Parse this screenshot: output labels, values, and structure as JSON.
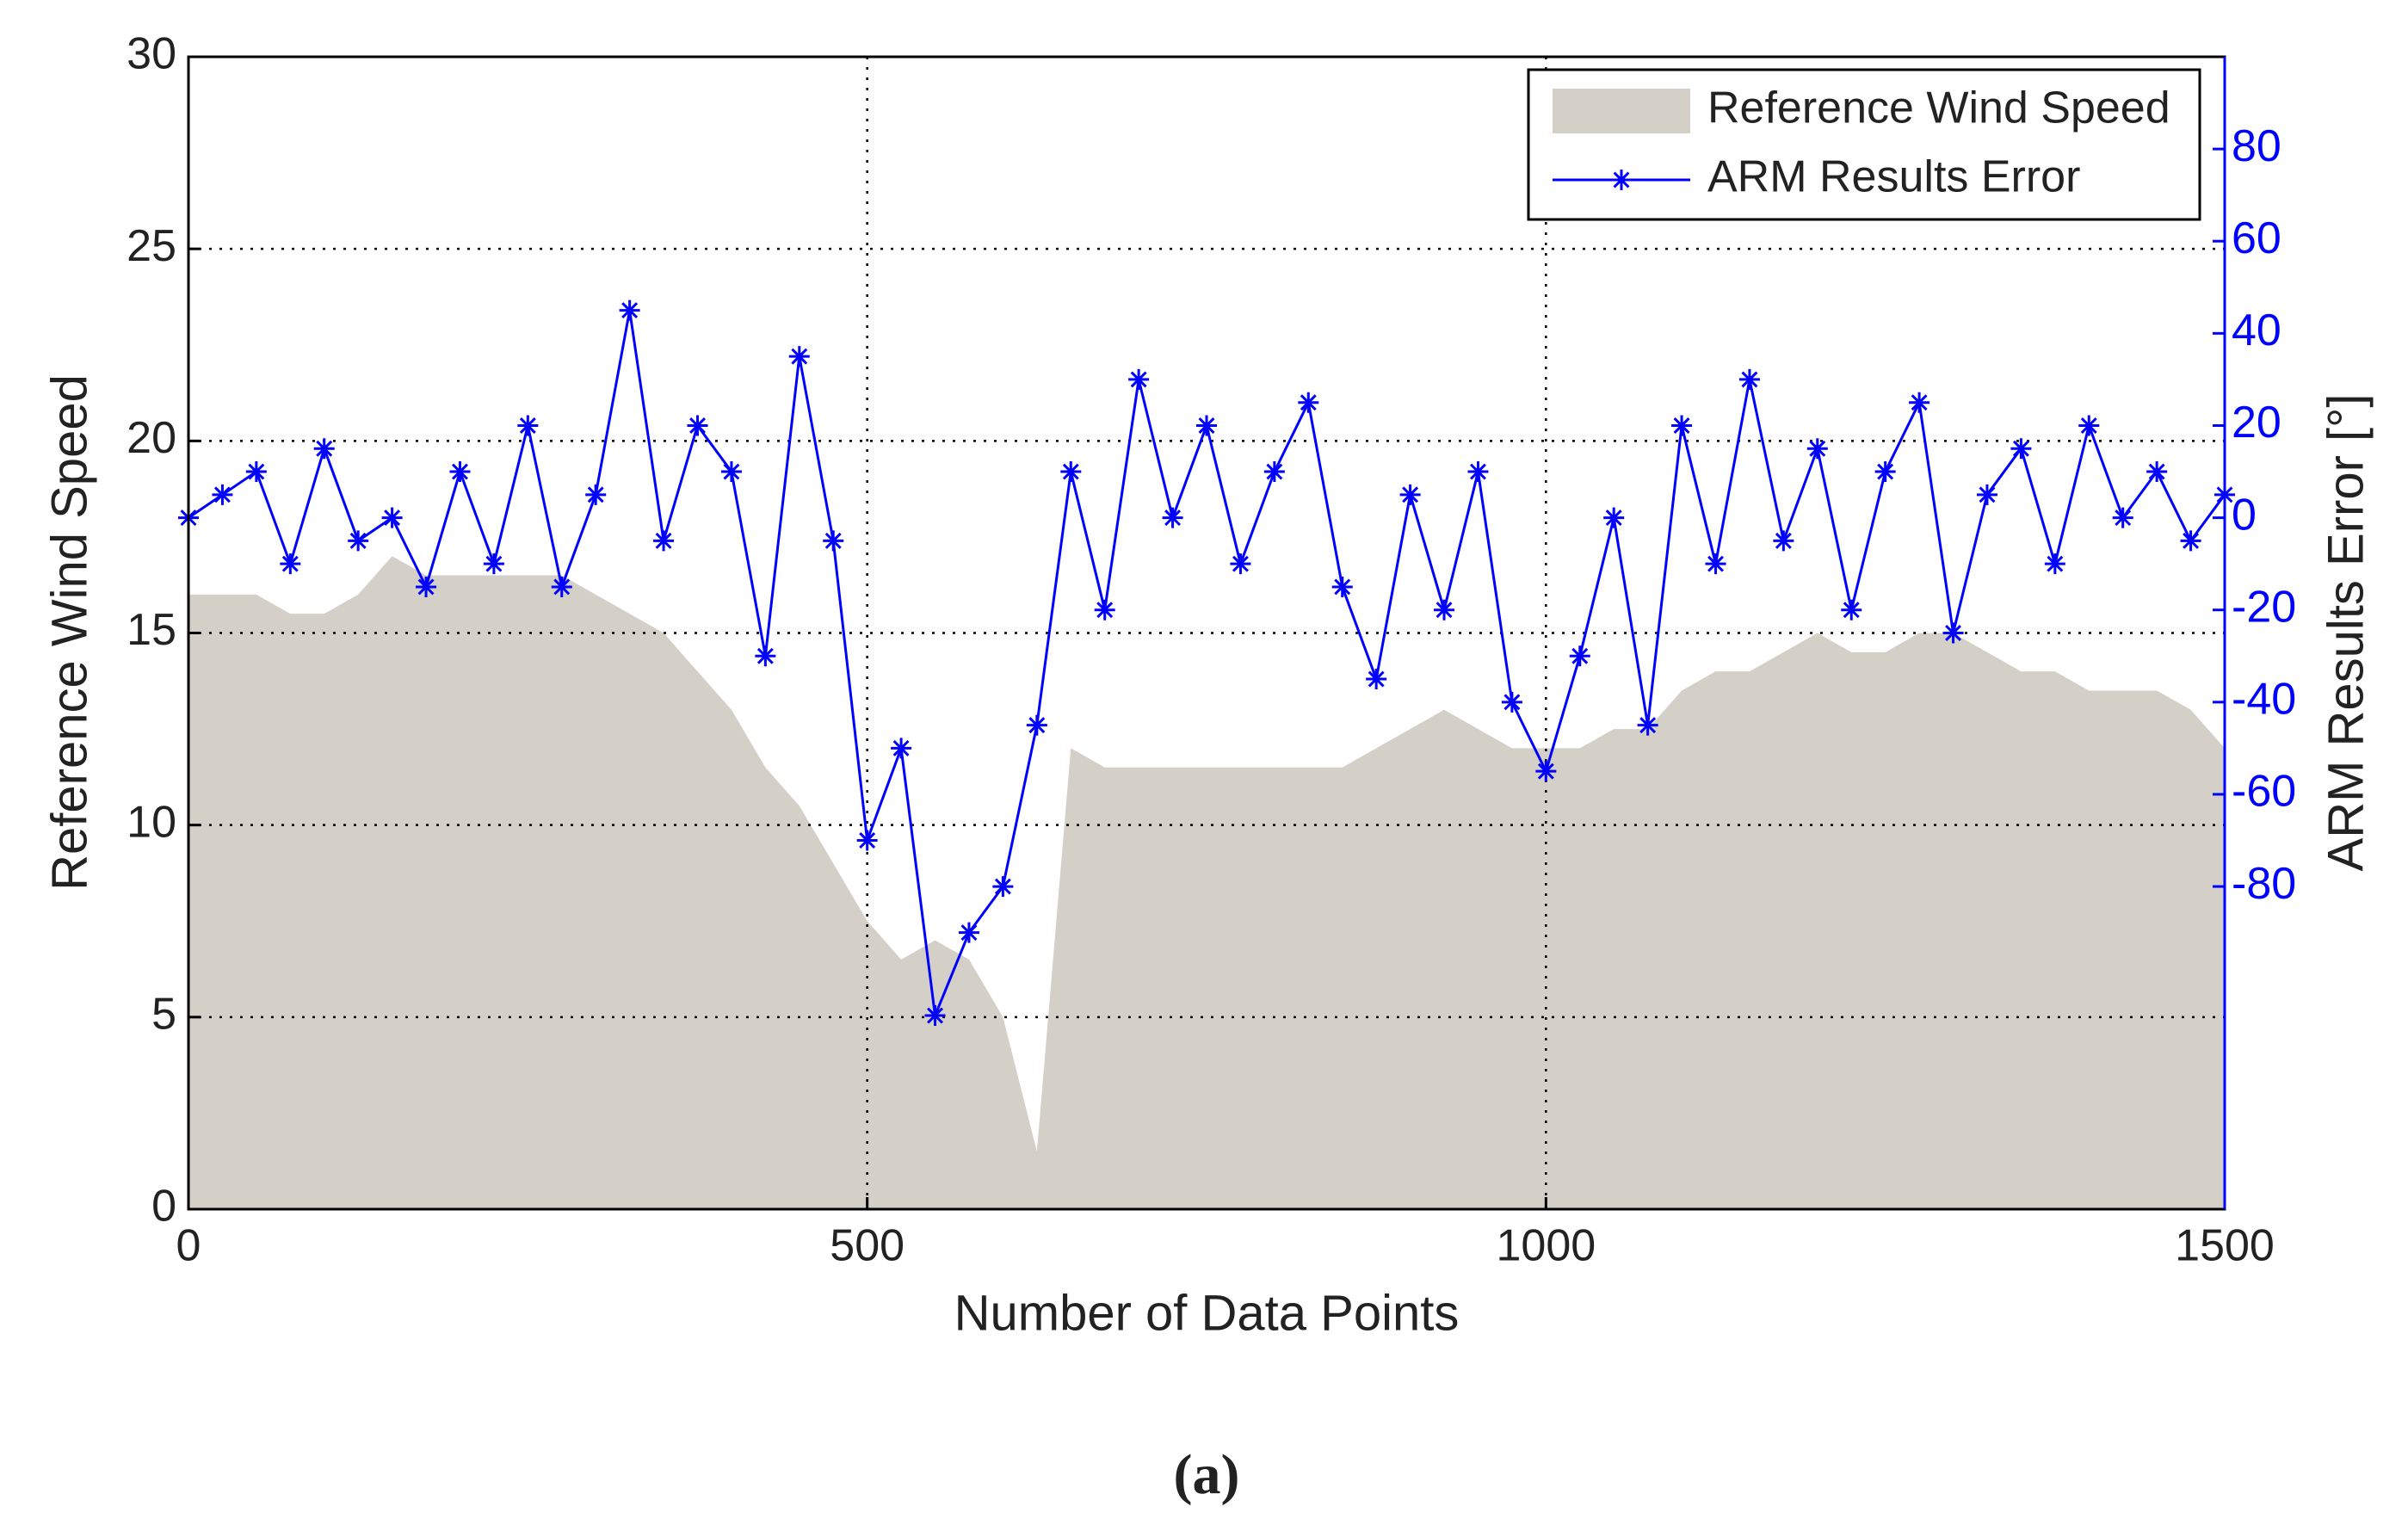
{
  "chart_data": {
    "type": "area",
    "xlabel": "Number of Data Points",
    "ylabel": "Reference Wind Speed",
    "y2label": "ARM Results Error [°]",
    "caption": "(a)",
    "x": [
      0,
      25,
      50,
      75,
      100,
      125,
      150,
      175,
      200,
      225,
      250,
      275,
      300,
      325,
      350,
      375,
      400,
      425,
      450,
      475,
      500,
      525,
      550,
      575,
      600,
      625,
      650,
      675,
      700,
      725,
      750,
      775,
      800,
      825,
      850,
      875,
      900,
      925,
      950,
      975,
      1000,
      1025,
      1050,
      1075,
      1100,
      1125,
      1150,
      1175,
      1200,
      1225,
      1250,
      1275,
      1300,
      1325,
      1350,
      1375,
      1400,
      1425,
      1450,
      1475,
      1500
    ],
    "series": [
      {
        "name": "Reference Wind Speed",
        "type": "area",
        "color": "#d4d0c8",
        "values": [
          16,
          16,
          16,
          15.5,
          15.5,
          16,
          17,
          16.5,
          16.5,
          16.5,
          16.5,
          16.5,
          16,
          15.5,
          15,
          14,
          13,
          11.5,
          10.5,
          9,
          7.5,
          6.5,
          7,
          6.5,
          5,
          1.5,
          12,
          11.5,
          11.5,
          11.5,
          11.5,
          11.5,
          11.5,
          11.5,
          11.5,
          12,
          12.5,
          13,
          12.5,
          12,
          12,
          12,
          12.5,
          12.5,
          13.5,
          14,
          14,
          14.5,
          15,
          14.5,
          14.5,
          15,
          15,
          14.5,
          14,
          14,
          13.5,
          13.5,
          13.5,
          13,
          12
        ]
      },
      {
        "name": "ARM Results Error",
        "type": "line",
        "axis": "y2",
        "color": "#0000ff",
        "values": [
          0,
          5,
          10,
          -10,
          15,
          -5,
          0,
          -15,
          10,
          -10,
          20,
          -15,
          5,
          45,
          -5,
          20,
          10,
          -30,
          35,
          -5,
          -70,
          -50,
          -108,
          -90,
          -80,
          -45,
          10,
          -20,
          30,
          0,
          20,
          -10,
          10,
          25,
          -15,
          -35,
          5,
          -20,
          10,
          -40,
          -55,
          -30,
          0,
          -45,
          20,
          -10,
          30,
          -5,
          15,
          -20,
          10,
          25,
          -25,
          5,
          15,
          -10,
          20,
          0,
          10,
          -5,
          5
        ]
      }
    ],
    "xlim": [
      0,
      1500
    ],
    "xticks": [
      0,
      500,
      1000,
      1500
    ],
    "ylim": [
      0,
      30
    ],
    "yticks": [
      0,
      5,
      10,
      15,
      20,
      25,
      30
    ],
    "y2lim": [
      -150,
      100
    ],
    "y2ticks": [
      -80,
      -60,
      -40,
      -20,
      0,
      20,
      40,
      60,
      80
    ],
    "grid": true,
    "legend": "upper right"
  }
}
